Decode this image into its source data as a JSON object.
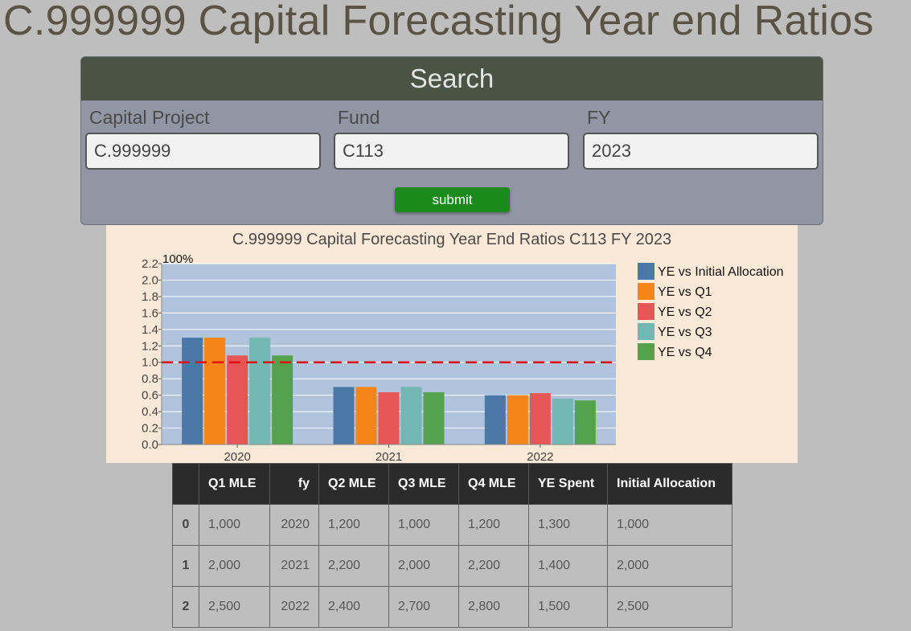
{
  "page": {
    "title": "C.999999 Capital Forecasting Year end Ratios"
  },
  "search": {
    "header": "Search",
    "fields": [
      {
        "label": "Capital Project",
        "value": "C.999999"
      },
      {
        "label": "Fund",
        "value": "C113"
      },
      {
        "label": "FY",
        "value": "2023"
      }
    ],
    "submit_label": "submit"
  },
  "chart_data": {
    "type": "bar",
    "title": "C.999999 Capital Forecasting Year End Ratios C113 FY 2023",
    "categories": [
      "2020",
      "2021",
      "2022"
    ],
    "series": [
      {
        "name": "YE vs Initial Allocation",
        "values": [
          1.3,
          0.7,
          0.6
        ],
        "color": "#4c78a8"
      },
      {
        "name": "YE vs Q1",
        "values": [
          1.3,
          0.7,
          0.6
        ],
        "color": "#f58518"
      },
      {
        "name": "YE vs Q2",
        "values": [
          1.083,
          0.636,
          0.625
        ],
        "color": "#e45756"
      },
      {
        "name": "YE vs Q3",
        "values": [
          1.3,
          0.7,
          0.556
        ],
        "color": "#72b7b2"
      },
      {
        "name": "YE vs Q4",
        "values": [
          1.083,
          0.636,
          0.536
        ],
        "color": "#54a24b"
      }
    ],
    "ylim": [
      0,
      2.2
    ],
    "yticks": [
      "0.0",
      "0.2",
      "0.4",
      "0.6",
      "0.8",
      "1.0",
      "1.2",
      "1.4",
      "1.6",
      "1.8",
      "2.0",
      "2.2"
    ],
    "reference_line": {
      "value": 1.0,
      "label": "100%",
      "color": "#e01010"
    },
    "grid": true,
    "legend_position": "right"
  },
  "table": {
    "headers": [
      "",
      "Q1 MLE",
      "fy",
      "Q2 MLE",
      "Q3 MLE",
      "Q4 MLE",
      "YE Spent",
      "Initial Allocation"
    ],
    "rows": [
      [
        "0",
        "1,000",
        "2020",
        "1,200",
        "1,000",
        "1,200",
        "1,300",
        "1,000"
      ],
      [
        "1",
        "2,000",
        "2021",
        "2,200",
        "2,000",
        "2,200",
        "1,400",
        "2,000"
      ],
      [
        "2",
        "2,500",
        "2022",
        "2,400",
        "2,700",
        "2,800",
        "1,500",
        "2,500"
      ]
    ]
  }
}
